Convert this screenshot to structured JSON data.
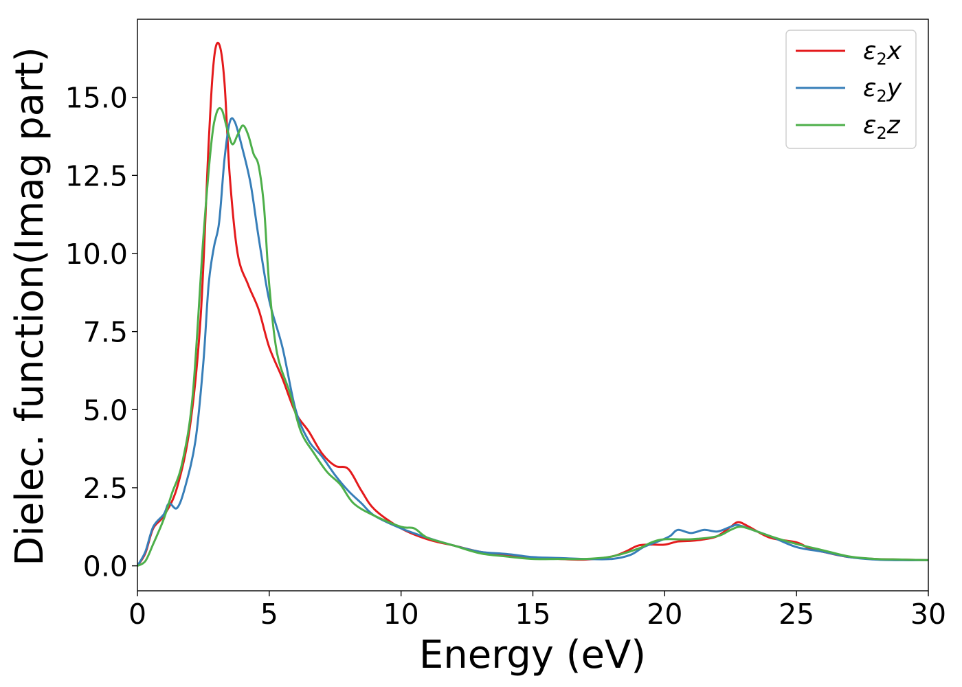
{
  "chart_data": {
    "type": "line",
    "title": "",
    "xlabel": "Energy (eV)",
    "ylabel": "Dielec. function(Imag part)",
    "xlim": [
      0,
      30
    ],
    "ylim": [
      -0.8,
      17.5
    ],
    "xticks": [
      0,
      5,
      10,
      15,
      20,
      25,
      30
    ],
    "yticks": [
      0.0,
      2.5,
      5.0,
      7.5,
      10.0,
      12.5,
      15.0
    ],
    "xtick_labels": [
      "0",
      "5",
      "10",
      "15",
      "20",
      "25",
      "30"
    ],
    "ytick_labels": [
      "0.0",
      "2.5",
      "5.0",
      "7.5",
      "10.0",
      "12.5",
      "15.0"
    ],
    "grid": false,
    "legend_position": "top-right",
    "series": [
      {
        "name_main": "ε",
        "name_sub": "2",
        "name_suffix": "x",
        "color": "#e41a1c",
        "points": [
          [
            0,
            0.0
          ],
          [
            0.3,
            0.4
          ],
          [
            0.6,
            1.2
          ],
          [
            1.0,
            1.6
          ],
          [
            1.5,
            2.5
          ],
          [
            2.0,
            4.5
          ],
          [
            2.4,
            8.0
          ],
          [
            2.7,
            13.5
          ],
          [
            2.9,
            16.2
          ],
          [
            3.1,
            16.7
          ],
          [
            3.3,
            15.5
          ],
          [
            3.5,
            12.5
          ],
          [
            3.8,
            10.0
          ],
          [
            4.2,
            9.0
          ],
          [
            4.6,
            8.2
          ],
          [
            5.0,
            7.0
          ],
          [
            5.5,
            6.0
          ],
          [
            6.0,
            4.9
          ],
          [
            6.5,
            4.3
          ],
          [
            7.0,
            3.6
          ],
          [
            7.5,
            3.2
          ],
          [
            8.0,
            3.1
          ],
          [
            8.5,
            2.4
          ],
          [
            9.0,
            1.8
          ],
          [
            10.0,
            1.2
          ],
          [
            11.0,
            0.85
          ],
          [
            12.0,
            0.65
          ],
          [
            13.0,
            0.45
          ],
          [
            14.0,
            0.35
          ],
          [
            15.0,
            0.25
          ],
          [
            16.0,
            0.22
          ],
          [
            17.0,
            0.2
          ],
          [
            18.0,
            0.3
          ],
          [
            18.5,
            0.45
          ],
          [
            19.0,
            0.65
          ],
          [
            19.5,
            0.68
          ],
          [
            20.0,
            0.68
          ],
          [
            20.5,
            0.78
          ],
          [
            21.0,
            0.8
          ],
          [
            21.5,
            0.85
          ],
          [
            22.0,
            0.95
          ],
          [
            22.5,
            1.25
          ],
          [
            22.8,
            1.4
          ],
          [
            23.2,
            1.25
          ],
          [
            24.0,
            0.9
          ],
          [
            25.0,
            0.75
          ],
          [
            25.5,
            0.55
          ],
          [
            26.0,
            0.45
          ],
          [
            27.0,
            0.28
          ],
          [
            28.0,
            0.22
          ],
          [
            29.0,
            0.2
          ],
          [
            30.0,
            0.18
          ]
        ]
      },
      {
        "name_main": "ε",
        "name_sub": "2",
        "name_suffix": "y",
        "color": "#377eb8",
        "points": [
          [
            0,
            0.0
          ],
          [
            0.3,
            0.45
          ],
          [
            0.6,
            1.25
          ],
          [
            1.0,
            1.65
          ],
          [
            1.2,
            2.0
          ],
          [
            1.5,
            1.85
          ],
          [
            1.8,
            2.5
          ],
          [
            2.2,
            4.0
          ],
          [
            2.5,
            6.5
          ],
          [
            2.7,
            9.0
          ],
          [
            2.9,
            10.2
          ],
          [
            3.1,
            11.0
          ],
          [
            3.3,
            13.0
          ],
          [
            3.5,
            14.2
          ],
          [
            3.7,
            14.2
          ],
          [
            4.0,
            13.3
          ],
          [
            4.3,
            12.2
          ],
          [
            4.6,
            10.5
          ],
          [
            5.0,
            8.5
          ],
          [
            5.5,
            7.0
          ],
          [
            6.0,
            5.0
          ],
          [
            6.5,
            4.0
          ],
          [
            7.0,
            3.5
          ],
          [
            7.5,
            2.9
          ],
          [
            8.0,
            2.4
          ],
          [
            8.5,
            2.0
          ],
          [
            9.0,
            1.6
          ],
          [
            10.0,
            1.2
          ],
          [
            11.0,
            0.9
          ],
          [
            12.0,
            0.65
          ],
          [
            13.0,
            0.45
          ],
          [
            14.0,
            0.38
          ],
          [
            15.0,
            0.28
          ],
          [
            16.0,
            0.25
          ],
          [
            17.0,
            0.22
          ],
          [
            18.0,
            0.22
          ],
          [
            18.7,
            0.35
          ],
          [
            19.2,
            0.6
          ],
          [
            19.8,
            0.8
          ],
          [
            20.2,
            0.95
          ],
          [
            20.5,
            1.15
          ],
          [
            21.0,
            1.05
          ],
          [
            21.5,
            1.15
          ],
          [
            22.0,
            1.1
          ],
          [
            22.5,
            1.25
          ],
          [
            22.8,
            1.3
          ],
          [
            23.5,
            1.1
          ],
          [
            24.0,
            0.95
          ],
          [
            25.0,
            0.6
          ],
          [
            26.0,
            0.45
          ],
          [
            27.0,
            0.28
          ],
          [
            28.0,
            0.2
          ],
          [
            29.0,
            0.18
          ],
          [
            30.0,
            0.18
          ]
        ]
      },
      {
        "name_main": "ε",
        "name_sub": "2",
        "name_suffix": "z",
        "color": "#4daf4a",
        "points": [
          [
            0,
            0.0
          ],
          [
            0.3,
            0.15
          ],
          [
            0.6,
            0.7
          ],
          [
            1.0,
            1.5
          ],
          [
            1.3,
            2.3
          ],
          [
            1.7,
            3.3
          ],
          [
            2.1,
            5.5
          ],
          [
            2.5,
            10.5
          ],
          [
            2.8,
            13.5
          ],
          [
            3.0,
            14.5
          ],
          [
            3.2,
            14.6
          ],
          [
            3.4,
            14.0
          ],
          [
            3.6,
            13.5
          ],
          [
            3.8,
            13.8
          ],
          [
            4.0,
            14.1
          ],
          [
            4.2,
            13.8
          ],
          [
            4.4,
            13.2
          ],
          [
            4.6,
            12.8
          ],
          [
            4.8,
            11.5
          ],
          [
            5.0,
            9.0
          ],
          [
            5.3,
            6.8
          ],
          [
            5.8,
            5.5
          ],
          [
            6.2,
            4.3
          ],
          [
            6.7,
            3.6
          ],
          [
            7.2,
            3.0
          ],
          [
            7.7,
            2.6
          ],
          [
            8.2,
            2.0
          ],
          [
            9.0,
            1.6
          ],
          [
            10.0,
            1.25
          ],
          [
            10.5,
            1.2
          ],
          [
            11.0,
            0.9
          ],
          [
            12.0,
            0.65
          ],
          [
            13.0,
            0.4
          ],
          [
            14.0,
            0.3
          ],
          [
            15.0,
            0.22
          ],
          [
            16.0,
            0.22
          ],
          [
            17.0,
            0.22
          ],
          [
            18.0,
            0.3
          ],
          [
            19.0,
            0.55
          ],
          [
            19.5,
            0.75
          ],
          [
            20.0,
            0.85
          ],
          [
            21.0,
            0.85
          ],
          [
            22.0,
            0.95
          ],
          [
            22.5,
            1.15
          ],
          [
            22.9,
            1.25
          ],
          [
            23.5,
            1.1
          ],
          [
            24.0,
            0.95
          ],
          [
            25.0,
            0.7
          ],
          [
            26.0,
            0.5
          ],
          [
            27.0,
            0.3
          ],
          [
            28.0,
            0.22
          ],
          [
            29.0,
            0.2
          ],
          [
            30.0,
            0.18
          ]
        ]
      }
    ]
  }
}
